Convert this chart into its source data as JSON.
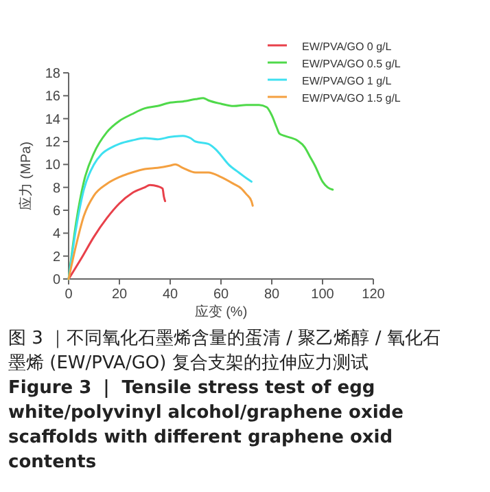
{
  "chart_data": {
    "type": "line",
    "xlabel": "应变 (%)",
    "ylabel": "应力 (MPa)",
    "xlim": [
      0,
      120
    ],
    "xticks": [
      0,
      20,
      40,
      60,
      80,
      100,
      120
    ],
    "ylim": [
      0,
      18
    ],
    "yticks": [
      0,
      2,
      4,
      6,
      8,
      10,
      12,
      14,
      16,
      18
    ],
    "legend": "top right",
    "grid": false,
    "line_style": "solid",
    "series": [
      {
        "name": "EW/PVA/GO 0 g/L",
        "color": "#e8404a",
        "x": [
          0,
          5,
          10,
          15,
          20,
          25,
          30,
          32,
          35,
          37,
          37.5,
          38
        ],
        "values": [
          0,
          1.8,
          3.7,
          5.3,
          6.6,
          7.5,
          8.0,
          8.2,
          8.1,
          7.9,
          7.2,
          6.8
        ]
      },
      {
        "name": "EW/PVA/GO 0.5 g/L",
        "color": "#4fd94a",
        "x": [
          0,
          3,
          6,
          10,
          15,
          20,
          25,
          30,
          35,
          40,
          45,
          50,
          53,
          55,
          60,
          65,
          70,
          75,
          78,
          80,
          82,
          83,
          85,
          90,
          93,
          95,
          97,
          100,
          102,
          104
        ],
        "values": [
          0,
          5,
          8.5,
          11,
          12.8,
          13.8,
          14.4,
          14.9,
          15.1,
          15.4,
          15.5,
          15.7,
          15.8,
          15.6,
          15.3,
          15.1,
          15.2,
          15.2,
          15.0,
          14.3,
          13.2,
          12.7,
          12.5,
          12.1,
          11.5,
          10.7,
          9.9,
          8.5,
          8.0,
          7.8
        ]
      },
      {
        "name": "EW/PVA/GO 1 g/L",
        "color": "#3ee0f0",
        "x": [
          0,
          3,
          6,
          10,
          13,
          17,
          20,
          25,
          30,
          35,
          40,
          45,
          48,
          50,
          55,
          58,
          60,
          63,
          67,
          70,
          72
        ],
        "values": [
          0,
          4.5,
          7.8,
          10,
          10.9,
          11.5,
          11.8,
          12.1,
          12.3,
          12.2,
          12.4,
          12.5,
          12.3,
          12.0,
          11.8,
          11.3,
          10.8,
          10.0,
          9.3,
          8.8,
          8.5
        ]
      },
      {
        "name": "EW/PVA/GO 1.5 g/L",
        "color": "#f4a040",
        "x": [
          0,
          3,
          6,
          10,
          15,
          20,
          25,
          30,
          35,
          40,
          42,
          45,
          50,
          55,
          60,
          65,
          68,
          70,
          72,
          72.5
        ],
        "values": [
          0,
          3,
          5.5,
          7.3,
          8.3,
          8.9,
          9.3,
          9.6,
          9.7,
          9.9,
          10.0,
          9.7,
          9.3,
          9.3,
          8.9,
          8.3,
          7.9,
          7.4,
          6.8,
          6.4
        ]
      }
    ],
    "annotations": [
      "图 3 ｜不同氧化石墨烯含量的蛋清 / 聚乙烯醇 / 氧化石墨烯 (EW/PVA/GO) 复合支架的拉伸应力测试",
      "Figure 3 ｜ Tensile stress test of egg white/polyvinyl alcohol/graphene oxide scaffolds with different graphene oxid contents"
    ]
  }
}
